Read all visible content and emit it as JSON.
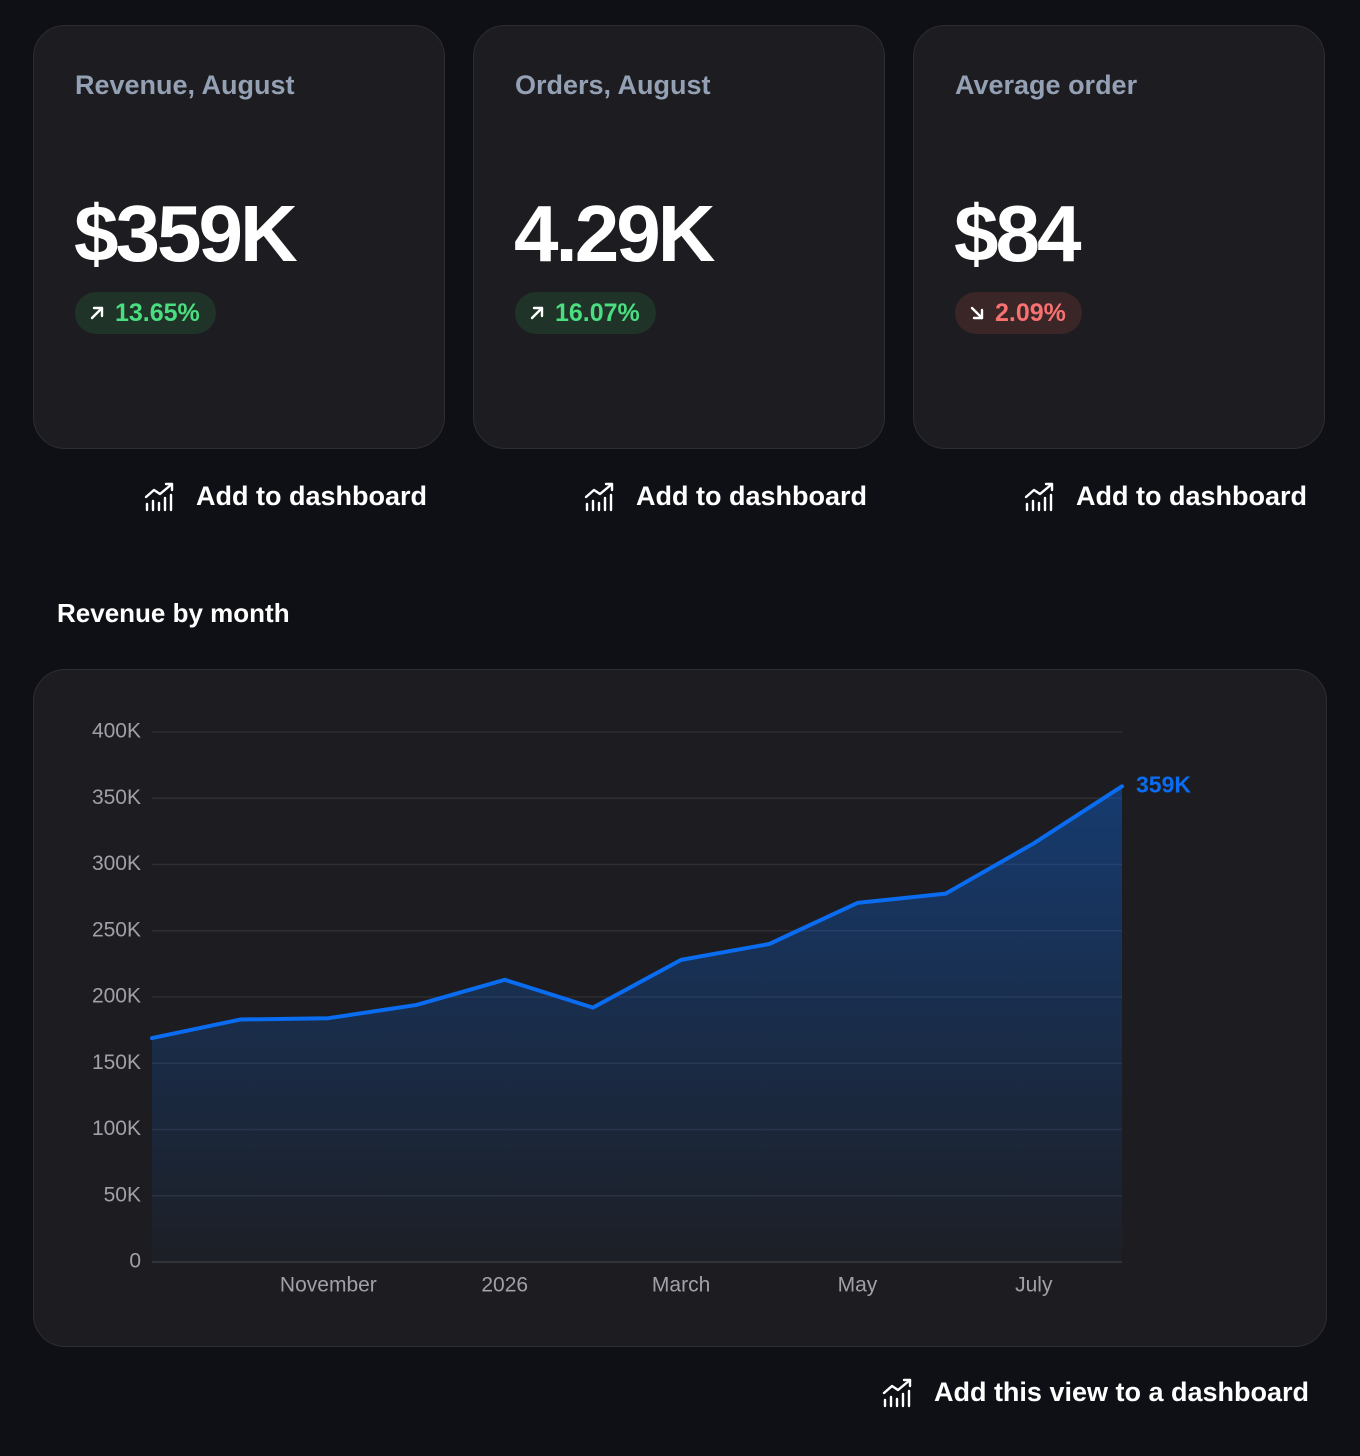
{
  "cards": [
    {
      "title": "Revenue, August",
      "value": "$359K",
      "change": "13.65%",
      "direction": "up",
      "action": "Add to dashboard"
    },
    {
      "title": "Orders, August",
      "value": "4.29K",
      "change": "16.07%",
      "direction": "up",
      "action": "Add to dashboard"
    },
    {
      "title": "Average order",
      "value": "$84",
      "change": "2.09%",
      "direction": "down",
      "action": "Add to dashboard"
    }
  ],
  "section": {
    "title": "Revenue by month",
    "action": "Add this view to a dashboard"
  },
  "chart_data": {
    "type": "line",
    "categories": [
      null,
      null,
      "November",
      null,
      "2026",
      null,
      "March",
      null,
      "May",
      null,
      "July",
      null
    ],
    "values": [
      169000,
      183000,
      184000,
      194000,
      213000,
      192000,
      228000,
      240000,
      271000,
      278000,
      316000,
      359000
    ],
    "value_labels": [
      null,
      null,
      null,
      null,
      null,
      null,
      null,
      null,
      null,
      null,
      null,
      "359K"
    ],
    "color": "#0a6cf0",
    "ylim": [
      0,
      400000
    ],
    "yticks": [
      0,
      {
        "value": 50000,
        "label": "50K"
      },
      {
        "value": 100000,
        "label": "100K"
      },
      {
        "value": 150000,
        "label": "150K"
      },
      {
        "value": 200000,
        "label": "200K"
      },
      {
        "value": 250000,
        "label": "250K"
      },
      {
        "value": 300000,
        "label": "300K"
      },
      {
        "value": 350000,
        "label": "350K"
      },
      {
        "value": 400000,
        "label": "400K"
      }
    ],
    "grid": true
  }
}
